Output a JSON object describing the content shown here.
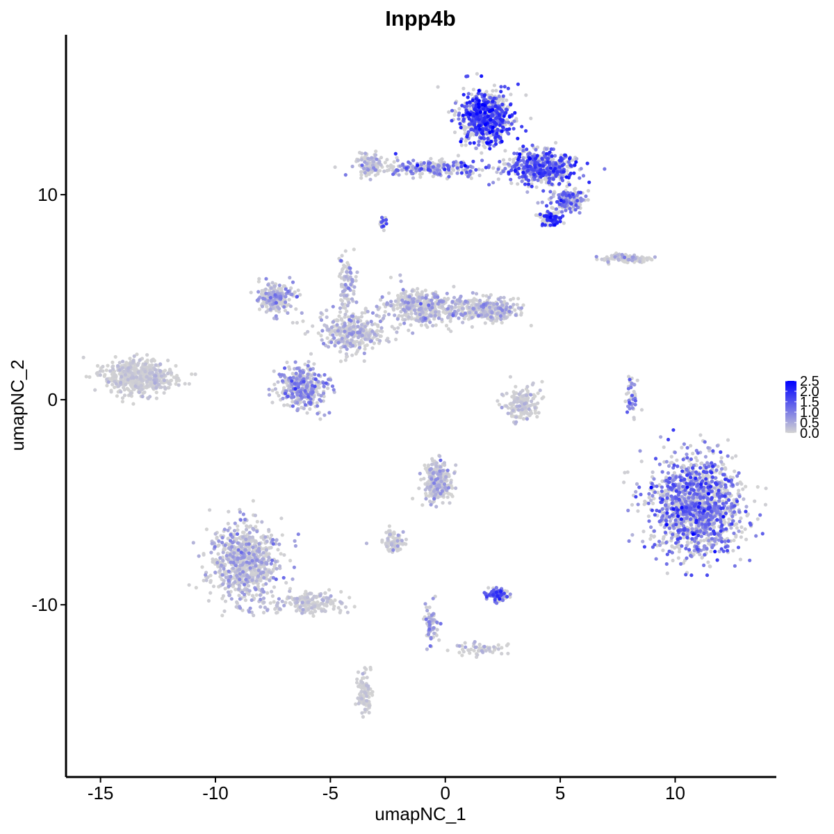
{
  "chart_data": {
    "type": "scatter",
    "title": "Inpp4b",
    "xlabel": "umapNC_1",
    "ylabel": "umapNC_2",
    "xlim": [
      -16.5,
      14.4
    ],
    "ylim": [
      -18.4,
      17.8
    ],
    "xticks": [
      -15,
      -10,
      -5,
      0,
      5,
      10
    ],
    "xtick_labels": [
      "-15",
      "-10",
      "-5",
      "0",
      "5",
      "10"
    ],
    "yticks": [
      -10,
      0,
      10
    ],
    "ytick_labels": [
      "-10",
      "0",
      "10"
    ],
    "grid": false,
    "legend": {
      "placement": "right",
      "type": "colorbar",
      "range": [
        0,
        2.5
      ],
      "ticks": [
        0.0,
        0.5,
        1.0,
        1.5,
        2.0,
        2.5
      ],
      "tick_labels": [
        "0.0",
        "0.5",
        "1.0",
        "1.5",
        "2.0",
        "2.5"
      ]
    },
    "colors": {
      "low": "#d3d3d3",
      "high": "#0000ff"
    },
    "point_color_variable": "expression",
    "clusters": [
      {
        "name": "",
        "center": [
          1.8,
          13.8
        ],
        "spread": [
          1.0,
          1.2
        ],
        "points": 700,
        "expression_mean": 1.6,
        "expression_sd": 0.45
      },
      {
        "name": "",
        "center": [
          4.2,
          11.3
        ],
        "spread": [
          1.3,
          0.7
        ],
        "points": 520,
        "expression_mean": 1.4,
        "expression_sd": 0.5
      },
      {
        "name": "",
        "center": [
          -0.5,
          11.3
        ],
        "spread": [
          2.6,
          0.35
        ],
        "points": 230,
        "expression_mean": 0.9,
        "expression_sd": 0.5
      },
      {
        "name": "",
        "center": [
          -3.2,
          11.5
        ],
        "spread": [
          0.6,
          0.5
        ],
        "points": 110,
        "expression_mean": 0.15,
        "expression_sd": 0.3
      },
      {
        "name": "",
        "center": [
          5.3,
          9.7
        ],
        "spread": [
          0.7,
          0.45
        ],
        "points": 170,
        "expression_mean": 1.0,
        "expression_sd": 0.5
      },
      {
        "name": "",
        "center": [
          4.6,
          8.8
        ],
        "spread": [
          0.4,
          0.3
        ],
        "points": 90,
        "expression_mean": 1.9,
        "expression_sd": 0.3
      },
      {
        "name": "",
        "center": [
          -2.7,
          8.6
        ],
        "spread": [
          0.15,
          0.2
        ],
        "points": 18,
        "expression_mean": 1.5,
        "expression_sd": 0.3
      },
      {
        "name": "",
        "center": [
          -13.3,
          1.1
        ],
        "spread": [
          1.35,
          0.75
        ],
        "points": 520,
        "expression_mean": 0.05,
        "expression_sd": 0.15
      },
      {
        "name": "",
        "center": [
          -6.2,
          0.6
        ],
        "spread": [
          0.9,
          0.9
        ],
        "points": 380,
        "expression_mean": 0.6,
        "expression_sd": 0.45
      },
      {
        "name": "",
        "center": [
          -7.3,
          5.0
        ],
        "spread": [
          0.8,
          0.7
        ],
        "points": 220,
        "expression_mean": 0.35,
        "expression_sd": 0.4
      },
      {
        "name": "",
        "center": [
          -4.0,
          3.3
        ],
        "spread": [
          1.3,
          0.9
        ],
        "points": 320,
        "expression_mean": 0.25,
        "expression_sd": 0.35
      },
      {
        "name": "",
        "center": [
          -1.0,
          4.6
        ],
        "spread": [
          1.5,
          0.8
        ],
        "points": 380,
        "expression_mean": 0.3,
        "expression_sd": 0.35
      },
      {
        "name": "",
        "center": [
          1.8,
          4.4
        ],
        "spread": [
          1.3,
          0.5
        ],
        "points": 300,
        "expression_mean": 0.25,
        "expression_sd": 0.35
      },
      {
        "name": "",
        "center": [
          -4.3,
          5.8
        ],
        "spread": [
          0.3,
          1.3
        ],
        "points": 90,
        "expression_mean": 0.3,
        "expression_sd": 0.35
      },
      {
        "name": "",
        "center": [
          3.3,
          -0.2
        ],
        "spread": [
          0.7,
          0.7
        ],
        "points": 170,
        "expression_mean": 0.1,
        "expression_sd": 0.2
      },
      {
        "name": "",
        "center": [
          7.9,
          6.9
        ],
        "spread": [
          1.1,
          0.22
        ],
        "points": 90,
        "expression_mean": 0.2,
        "expression_sd": 0.35
      },
      {
        "name": "",
        "center": [
          8.1,
          0.3
        ],
        "spread": [
          0.25,
          0.9
        ],
        "points": 45,
        "expression_mean": 0.9,
        "expression_sd": 0.4
      },
      {
        "name": "",
        "center": [
          10.9,
          -5.2
        ],
        "spread": [
          1.8,
          2.1
        ],
        "points": 1400,
        "expression_mean": 0.95,
        "expression_sd": 0.5
      },
      {
        "name": "",
        "center": [
          -8.7,
          -8.0
        ],
        "spread": [
          1.4,
          1.8
        ],
        "points": 720,
        "expression_mean": 0.3,
        "expression_sd": 0.35
      },
      {
        "name": "",
        "center": [
          -5.8,
          -9.9
        ],
        "spread": [
          1.3,
          0.45
        ],
        "points": 180,
        "expression_mean": 0.1,
        "expression_sd": 0.2
      },
      {
        "name": "",
        "center": [
          -3.5,
          -14.3
        ],
        "spread": [
          0.3,
          1.1
        ],
        "points": 100,
        "expression_mean": 0.05,
        "expression_sd": 0.15
      },
      {
        "name": "",
        "center": [
          -0.4,
          -4.0
        ],
        "spread": [
          0.6,
          0.9
        ],
        "points": 260,
        "expression_mean": 0.25,
        "expression_sd": 0.35
      },
      {
        "name": "",
        "center": [
          -2.3,
          -6.9
        ],
        "spread": [
          0.55,
          0.55
        ],
        "points": 70,
        "expression_mean": 0.15,
        "expression_sd": 0.3
      },
      {
        "name": "",
        "center": [
          2.2,
          -9.5
        ],
        "spread": [
          0.4,
          0.25
        ],
        "points": 130,
        "expression_mean": 1.3,
        "expression_sd": 0.4
      },
      {
        "name": "",
        "center": [
          -0.6,
          -10.9
        ],
        "spread": [
          0.25,
          0.9
        ],
        "points": 70,
        "expression_mean": 0.6,
        "expression_sd": 0.45
      },
      {
        "name": "",
        "center": [
          1.6,
          -12.2
        ],
        "spread": [
          1.1,
          0.3
        ],
        "points": 55,
        "expression_mean": 0.1,
        "expression_sd": 0.25
      }
    ]
  }
}
